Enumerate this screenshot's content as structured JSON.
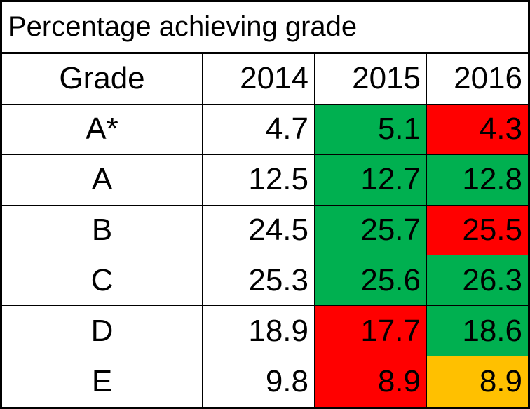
{
  "chart_data": {
    "type": "table",
    "title": "Percentage achieving grade",
    "header": {
      "grade_label": "Grade",
      "years": [
        "2014",
        "2015",
        "2016"
      ]
    },
    "rows": [
      {
        "grade": "A*",
        "values": [
          "4.7",
          "5.1",
          "4.3"
        ],
        "fills": [
          "#ffffff",
          "#00b050",
          "#ff0000"
        ]
      },
      {
        "grade": "A",
        "values": [
          "12.5",
          "12.7",
          "12.8"
        ],
        "fills": [
          "#ffffff",
          "#00b050",
          "#00b050"
        ]
      },
      {
        "grade": "B",
        "values": [
          "24.5",
          "25.7",
          "25.5"
        ],
        "fills": [
          "#ffffff",
          "#00b050",
          "#ff0000"
        ]
      },
      {
        "grade": "C",
        "values": [
          "25.3",
          "25.6",
          "26.3"
        ],
        "fills": [
          "#ffffff",
          "#00b050",
          "#00b050"
        ]
      },
      {
        "grade": "D",
        "values": [
          "18.9",
          "17.7",
          "18.6"
        ],
        "fills": [
          "#ffffff",
          "#ff0000",
          "#00b050"
        ]
      },
      {
        "grade": "E",
        "values": [
          "9.8",
          "8.9",
          "8.9"
        ],
        "fills": [
          "#ffffff",
          "#ff0000",
          "#ffc000"
        ]
      }
    ],
    "colors": {
      "increase": "#00b050",
      "decrease": "#ff0000",
      "unchanged": "#ffc000"
    }
  }
}
